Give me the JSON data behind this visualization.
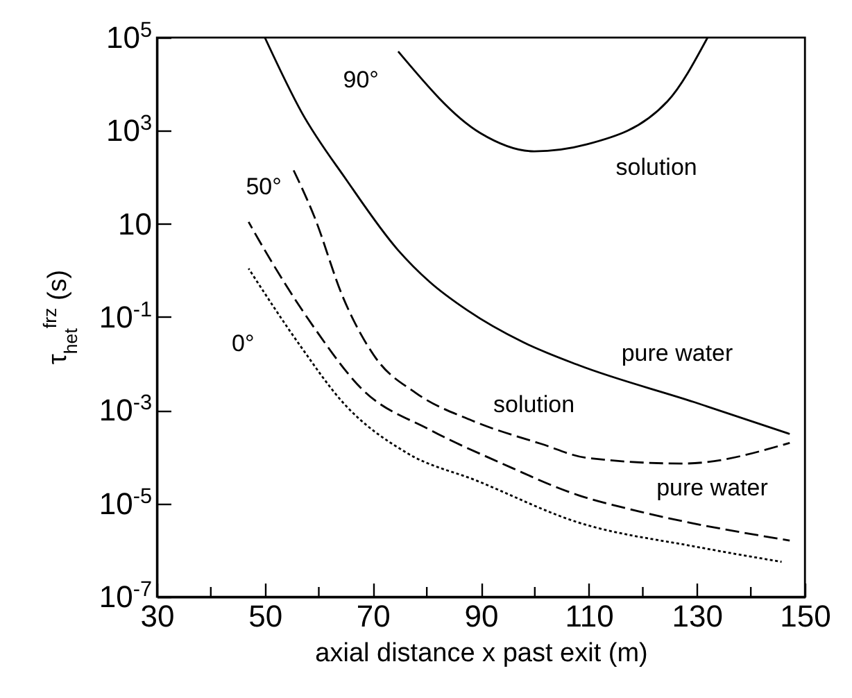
{
  "chart_data": {
    "type": "line",
    "xlabel": "axial distance x past exit (m)",
    "ylabel": "τ$_{het}$$^{frz}$ (s)",
    "xlim": [
      30,
      150
    ],
    "ylim": [
      1e-07,
      100000
    ],
    "log": "y",
    "grid": false,
    "marker": "none",
    "xticks": [
      30,
      {
        "value": 40,
        "label": null
      },
      50,
      {
        "value": 60,
        "label": null
      },
      70,
      {
        "value": 80,
        "label": null
      },
      90,
      {
        "value": 100,
        "label": null
      },
      110,
      {
        "value": 120,
        "label": null
      },
      130,
      {
        "value": 140,
        "label": null
      },
      150
    ],
    "yticks": [
      {
        "value": 1e-07,
        "label": "10$^{-7}$"
      },
      {
        "value": 1e-05,
        "label": "10$^{-5}$"
      },
      {
        "value": 0.001,
        "label": "10$^{-3}$"
      },
      {
        "value": 0.1,
        "label": "10$^{-1}$"
      },
      10,
      {
        "value": 1000,
        "label": "10$^{3}$"
      },
      {
        "value": 100000,
        "label": "10$^{5}$"
      }
    ],
    "series": [
      {
        "color": "#000000",
        "line_style": "solid",
        "x": [
          50,
          56.8,
          65.2,
          74.6,
          80.6,
          87.5,
          97.8,
          108.1,
          129.5,
          147.2
        ],
        "values": [
          100000,
          2500,
          85,
          2.8,
          0.56,
          0.14,
          0.029,
          0.0093,
          0.0015,
          0.00031
        ]
      },
      {
        "color": "#000000",
        "line_style": "solid",
        "x": [
          74.7,
          89.9,
          99.9,
          109.7,
          124.6,
          132
        ],
        "values": [
          50000,
          890,
          360,
          510,
          4300,
          100000
        ]
      },
      {
        "color": "#000000",
        "line_style": "dashed",
        "x": [
          54.9,
          59.2,
          64.4,
          70.4,
          78.1,
          88.4,
          101.2,
          109.7,
          127.4,
          147.2
        ],
        "values": [
          180,
          14,
          0.28,
          0.014,
          0.0023,
          0.0006,
          0.00019,
          9.5e-05,
          7.2e-05,
          0.0002
        ]
      },
      {
        "color": "#000000",
        "line_style": "dashed",
        "x": [
          47,
          48.9,
          59.2,
          67.8,
          80.6,
          93.5,
          108.1,
          119.7,
          147.2
        ],
        "values": [
          11,
          4.5,
          0.058,
          0.003,
          0.00038,
          7.6e-05,
          1.5e-05,
          6.6e-06,
          1.6e-06
        ]
      },
      {
        "color": "#000000",
        "line_style": "dotted",
        "x": [
          47,
          56.7,
          64.4,
          76.4,
          89.2,
          108.1,
          129.5,
          145.7
        ],
        "values": [
          1.1,
          0.023,
          0.0015,
          0.00012,
          3.1e-05,
          3.9e-06,
          1.2e-06,
          5.6e-07
        ]
      }
    ],
    "annotations": [
      "90°",
      "solution",
      "50°",
      "0°",
      "pure water",
      "solution",
      "pure water"
    ]
  }
}
